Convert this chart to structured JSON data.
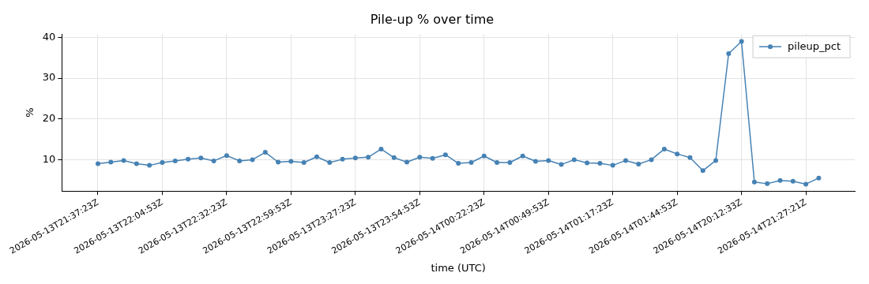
{
  "chart_data": {
    "type": "line",
    "title": "Pile-up % over time",
    "xlabel": "time (UTC)",
    "ylabel": "%",
    "categories": [
      "2026-05-13T21:37:23Z",
      null,
      null,
      null,
      null,
      "2026-05-13T22:04:53Z",
      null,
      null,
      null,
      null,
      "2026-05-13T22:32:23Z",
      null,
      null,
      null,
      null,
      "2026-05-13T22:59:53Z",
      null,
      null,
      null,
      null,
      "2026-05-13T23:27:23Z",
      null,
      null,
      null,
      null,
      "2026-05-13T23:54:53Z",
      null,
      null,
      null,
      null,
      "2026-05-14T00:22:23Z",
      null,
      null,
      null,
      null,
      "2026-05-14T00:49:53Z",
      null,
      null,
      null,
      null,
      "2026-05-14T01:17:23Z",
      null,
      null,
      null,
      null,
      "2026-05-14T01:44:53Z",
      null,
      null,
      null,
      null,
      "2026-05-14T20:12:33Z",
      null,
      null,
      null,
      null,
      "2026-05-14T21:27:21Z",
      null
    ],
    "series": [
      {
        "name": "pileup_pct",
        "color": "#4682b4",
        "values": [
          9.0,
          9.4,
          9.8,
          9.0,
          8.6,
          9.3,
          9.7,
          10.1,
          10.4,
          9.7,
          11.0,
          9.7,
          10.0,
          11.8,
          9.4,
          9.6,
          9.3,
          10.7,
          9.3,
          10.1,
          10.4,
          10.6,
          12.6,
          10.5,
          9.4,
          10.6,
          10.3,
          11.2,
          9.1,
          9.3,
          10.9,
          9.3,
          9.3,
          10.9,
          9.6,
          9.8,
          8.8,
          10.0,
          9.2,
          9.1,
          8.6,
          9.8,
          8.9,
          10.0,
          12.6,
          11.4,
          10.5,
          7.3,
          9.8,
          36.0,
          39.0,
          4.5,
          4.1,
          4.9,
          4.7,
          4.0,
          5.5
        ]
      }
    ],
    "ylim": [
      2.3,
      40.8
    ],
    "yticks": [
      10,
      20,
      30,
      40
    ],
    "grid": true,
    "legend": "top right",
    "marker": "circle",
    "line_style": "solid"
  }
}
